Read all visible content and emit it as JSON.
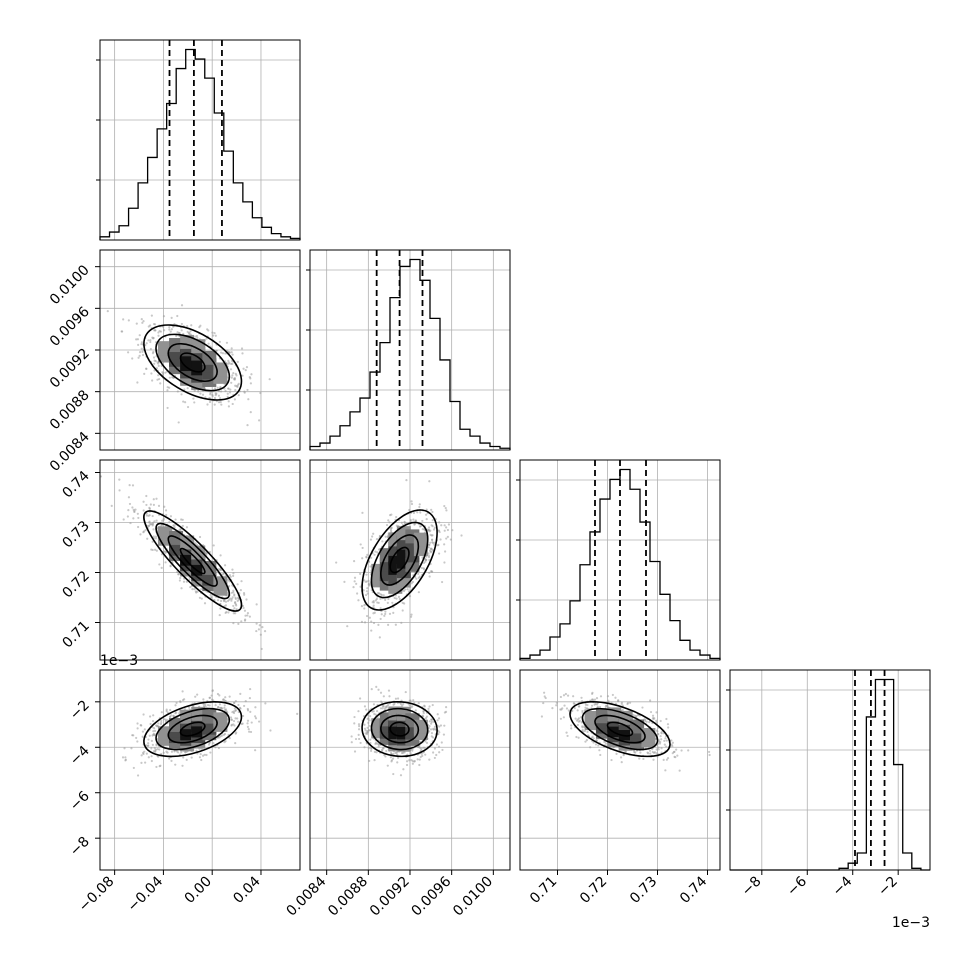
{
  "chart_data": {
    "type": "corner",
    "title": "",
    "params": [
      {
        "range": [
          -0.092,
          0.072
        ],
        "median": -0.015,
        "q16": -0.035,
        "q84": 0.008,
        "x_ticks": [
          -0.08,
          -0.04,
          0.0,
          0.04
        ],
        "x_tick_labels": [
          "−0.08",
          "−0.04",
          "0.00",
          "0.04"
        ],
        "hist_counts": [
          2,
          5,
          9,
          20,
          36,
          52,
          70,
          86,
          108,
          120,
          114,
          102,
          80,
          56,
          36,
          24,
          14,
          8,
          4,
          2,
          1
        ]
      },
      {
        "range": [
          0.00824,
          0.01016
        ],
        "median": 0.0091,
        "q16": 0.00888,
        "q84": 0.00932,
        "y_ticks": [
          0.0084,
          0.0088,
          0.0092,
          0.0096,
          0.01
        ],
        "y_tick_labels": [
          "0.0084",
          "0.0088",
          "0.0092",
          "0.0096",
          "0.0100"
        ],
        "x_ticks": [
          0.0084,
          0.0088,
          0.0092,
          0.0096,
          0.01
        ],
        "x_tick_labels": [
          "0.0084",
          "0.0088",
          "0.0092",
          "0.0096",
          "0.0100"
        ],
        "hist_counts": [
          2,
          4,
          8,
          14,
          22,
          30,
          45,
          62,
          88,
          106,
          110,
          98,
          76,
          52,
          28,
          12,
          8,
          4,
          2,
          1
        ]
      },
      {
        "range": [
          0.7025,
          0.7425
        ],
        "median": 0.7225,
        "q16": 0.7175,
        "q84": 0.7277,
        "y_ticks": [
          0.71,
          0.72,
          0.73,
          0.74
        ],
        "y_tick_labels": [
          "0.71",
          "0.72",
          "0.73",
          "0.74"
        ],
        "x_ticks": [
          0.71,
          0.72,
          0.73,
          0.74
        ],
        "x_tick_labels": [
          "0.71",
          "0.72",
          "0.73",
          "0.74"
        ],
        "hist_counts": [
          1,
          3,
          6,
          14,
          22,
          36,
          58,
          78,
          98,
          110,
          116,
          104,
          84,
          60,
          40,
          24,
          12,
          6,
          3,
          1
        ]
      },
      {
        "range": [
          -9.4,
          -0.6
        ],
        "median": -3.2,
        "q16": -3.9,
        "q84": -2.6,
        "y_ticks": [
          -8,
          -6,
          -4,
          -2
        ],
        "y_tick_labels": [
          "−8",
          "−6",
          "−4",
          "−2"
        ],
        "x_ticks": [
          -8,
          -6,
          -4,
          -2
        ],
        "x_tick_labels": [
          "−8",
          "−6",
          "−4",
          "−2"
        ],
        "axis_offset_label": "1e−3",
        "hist_counts": [
          0,
          0,
          0,
          0,
          0,
          0,
          0,
          0,
          0,
          0,
          0,
          0,
          1,
          4,
          10,
          90,
          112,
          112,
          62,
          10,
          1,
          0
        ]
      }
    ],
    "pairs": [
      {
        "row": 1,
        "col": 0,
        "center": [
          -0.016,
          0.00908
        ],
        "spread": [
          0.02,
          0.00018
        ],
        "rho": -0.5
      },
      {
        "row": 2,
        "col": 0,
        "center": [
          -0.016,
          0.7223
        ],
        "spread": [
          0.02,
          0.005
        ],
        "rho": -0.88
      },
      {
        "row": 2,
        "col": 1,
        "center": [
          0.0091,
          0.7225
        ],
        "spread": [
          0.00018,
          0.005
        ],
        "rho": 0.55
      },
      {
        "row": 3,
        "col": 0,
        "center": [
          -0.016,
          -3.2
        ],
        "spread": [
          0.02,
          0.6
        ],
        "rho": 0.45
      },
      {
        "row": 3,
        "col": 1,
        "center": [
          0.0091,
          -3.2
        ],
        "spread": [
          0.00018,
          0.6
        ],
        "rho": -0.05
      },
      {
        "row": 3,
        "col": 2,
        "center": [
          0.7225,
          -3.2
        ],
        "spread": [
          0.005,
          0.6
        ],
        "rho": -0.55
      }
    ],
    "grid": true,
    "quantile_lines": "dashed"
  }
}
